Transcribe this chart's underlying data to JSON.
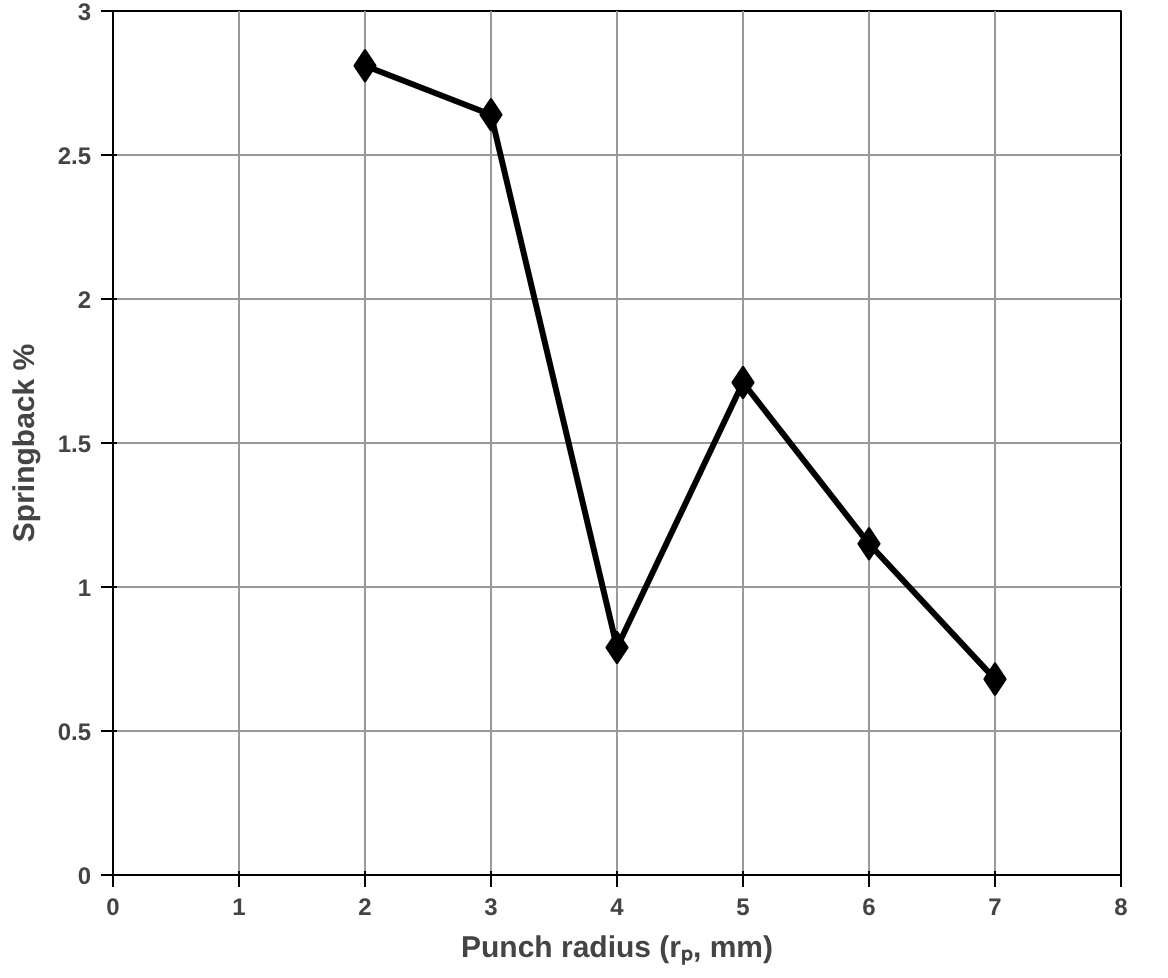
{
  "chart_data": {
    "type": "line",
    "xlabel": "Punch radius (rₚ, mm)",
    "ylabel": "Springback %",
    "x": [
      2,
      3,
      4,
      5,
      6,
      7
    ],
    "series": [
      {
        "color": "#000000",
        "values": [
          2.81,
          2.64,
          0.79,
          1.71,
          1.15,
          0.68
        ]
      }
    ],
    "xlim": [
      0,
      8
    ],
    "xticks": [
      0,
      1,
      2,
      3,
      4,
      5,
      6,
      7,
      8
    ],
    "ylim": [
      0,
      3
    ],
    "yticks": [
      0,
      0.5,
      1,
      1.5,
      2,
      2.5,
      3
    ],
    "grid": true,
    "marker": "diamond",
    "line_style": "solid"
  }
}
